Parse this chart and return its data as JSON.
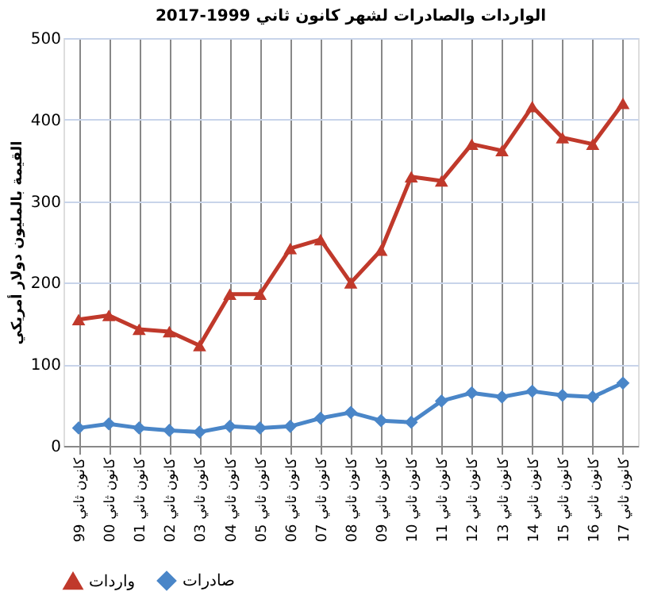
{
  "chart_data": {
    "type": "line",
    "title": "الواردات والصادرات لشهر كانون ثاني 1999-2017",
    "ylabel": "القيمة بالمليون دولار أمريكي",
    "categories": [
      "كانون ثاني 99",
      "كانون ثاني 00",
      "كانون ثاني 01",
      "كانون ثاني 02",
      "كانون ثاني 03",
      "كانون ثاني 04",
      "كانون ثاني 05",
      "كانون ثاني 06",
      "كانون ثاني 07",
      "كانون ثاني 08",
      "كانون ثاني 09",
      "كانون ثاني 10",
      "كانون ثاني 11",
      "كانون ثاني 12",
      "كانون ثاني 13",
      "كانون ثاني 14",
      "كانون ثاني 15",
      "كانون ثاني 16",
      "كانون ثاني 17"
    ],
    "series": [
      {
        "name": "واردات",
        "color": "#c0392b",
        "marker": "triangle",
        "values": [
          155,
          160,
          143,
          140,
          123,
          186,
          186,
          242,
          253,
          200,
          240,
          330,
          325,
          370,
          362,
          416,
          378,
          370,
          420
        ]
      },
      {
        "name": "صادرات",
        "color": "#4a86c8",
        "marker": "diamond",
        "values": [
          22,
          27,
          22,
          19,
          17,
          24,
          22,
          24,
          34,
          41,
          31,
          29,
          55,
          65,
          60,
          67,
          62,
          60,
          77
        ]
      }
    ],
    "ylim": [
      0,
      500
    ],
    "yticks": [
      0,
      100,
      200,
      300,
      400,
      500
    ],
    "grid": true,
    "legend": "bottom"
  }
}
